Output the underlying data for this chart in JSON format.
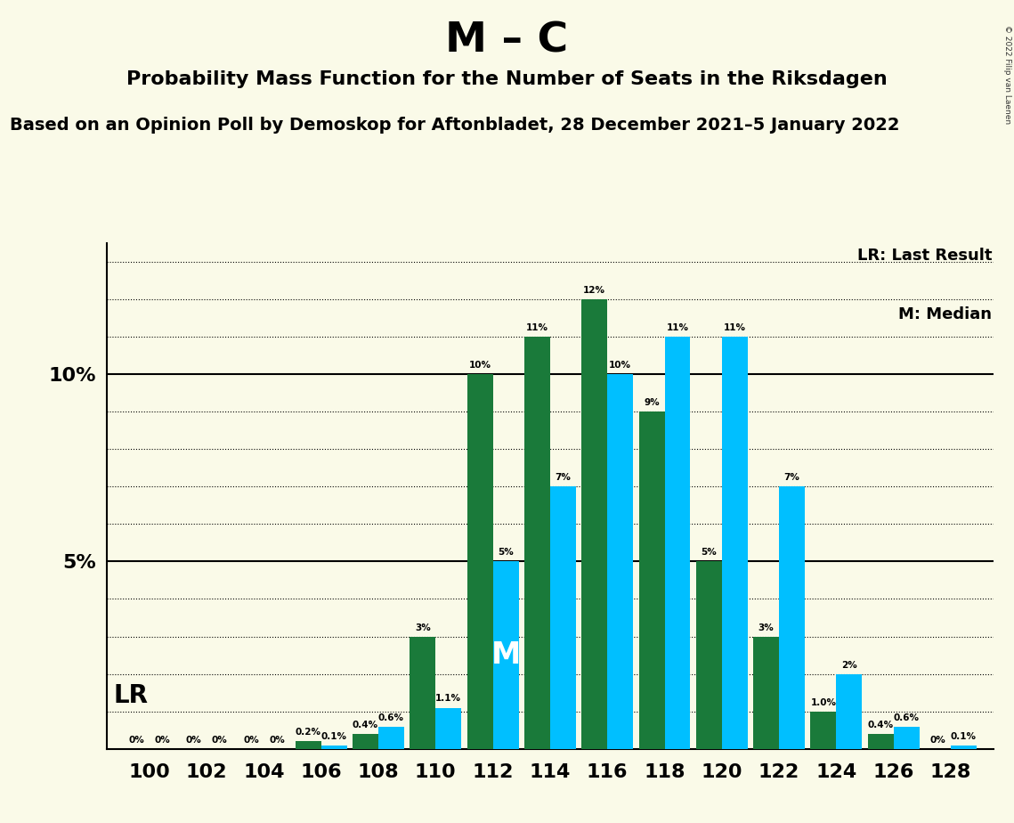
{
  "title": "M – C",
  "subtitle": "Probability Mass Function for the Number of Seats in the Riksdagen",
  "source": "Based on an Opinion Poll by Demoskop for Aftonbladet, 28 December 2021–5 January 2022",
  "copyright": "© 2022 Filip van Laenen",
  "seats": [
    100,
    102,
    104,
    106,
    108,
    110,
    112,
    114,
    116,
    118,
    120,
    122,
    124,
    126,
    128
  ],
  "green_values": [
    0.0,
    0.0,
    0.0,
    0.2,
    0.4,
    3.0,
    10.0,
    11.0,
    12.0,
    9.0,
    5.0,
    3.0,
    1.0,
    0.4,
    0.0
  ],
  "cyan_values": [
    0.0,
    0.0,
    0.0,
    0.1,
    0.6,
    1.1,
    5.0,
    7.0,
    10.0,
    11.0,
    11.0,
    7.0,
    2.0,
    0.6,
    0.1
  ],
  "green_labels": [
    "0%",
    "0%",
    "0%",
    "0.2%",
    "0.4%",
    "3%",
    "10%",
    "11%",
    "12%",
    "9%",
    "5%",
    "3%",
    "1.0%",
    "0.4%",
    "0%"
  ],
  "cyan_labels": [
    "0%",
    "0%",
    "0%",
    "0.1%",
    "0.6%",
    "1.1%",
    "5%",
    "7%",
    "10%",
    "11%",
    "11%",
    "7%",
    "2%",
    "0.6%",
    "0.1%"
  ],
  "green_color": "#1a7a3a",
  "cyan_color": "#00bfff",
  "background_color": "#fafae8",
  "ylim_max": 13.5,
  "median_seat_idx": 6,
  "bar_width": 0.45,
  "title_fontsize": 34,
  "subtitle_fontsize": 16,
  "source_fontsize": 14,
  "legend_lr": "LR: Last Result",
  "legend_m": "M: Median",
  "m_label": "M",
  "lr_label": "LR"
}
